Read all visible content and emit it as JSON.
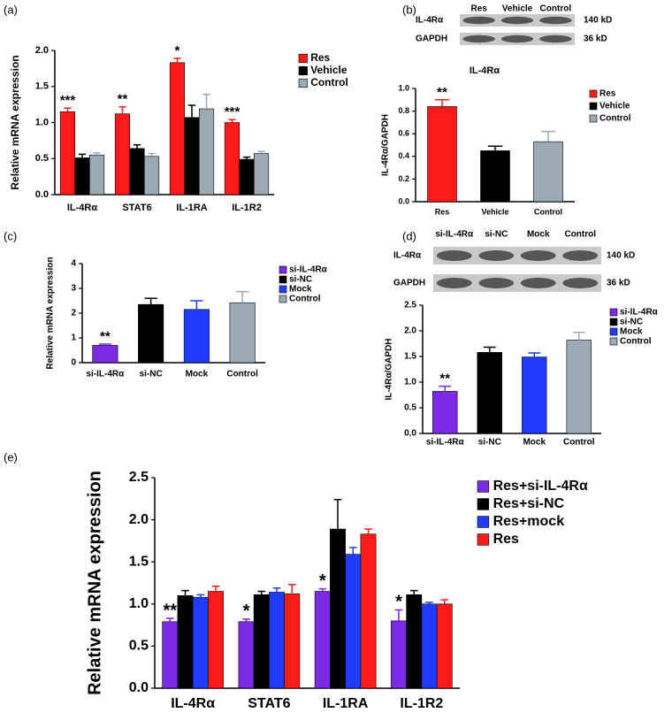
{
  "chart_data": [
    {
      "type": "bar",
      "panel": "(a)",
      "ylabel": "Relative mRNA expression",
      "categories": [
        "IL-4Rα",
        "STAT6",
        "IL-1RA",
        "IL-1R2"
      ],
      "series": [
        {
          "name": "Res",
          "color": "#ff1a1a",
          "values": [
            1.15,
            1.12,
            1.83,
            1.0
          ],
          "errors": [
            0.05,
            0.1,
            0.06,
            0.04
          ],
          "annotations": [
            "***",
            "**",
            "*",
            "***"
          ]
        },
        {
          "name": "Vehicle",
          "color": "#000000",
          "values": [
            0.51,
            0.64,
            1.07,
            0.49
          ],
          "errors": [
            0.05,
            0.05,
            0.17,
            0.03
          ]
        },
        {
          "name": "Control",
          "color": "#9aabb5",
          "values": [
            0.55,
            0.53,
            1.19,
            0.57
          ],
          "errors": [
            0.03,
            0.04,
            0.2,
            0.03
          ]
        }
      ],
      "ylim": [
        0,
        2
      ],
      "yticks": [
        {
          "value": 0,
          "label": "0.0"
        },
        0.5,
        {
          "value": 1,
          "label": "1.0"
        },
        1.5,
        {
          "value": 2,
          "label": "2.0"
        }
      ]
    },
    {
      "type": "bar",
      "panel": "(b)",
      "title": "IL-4Rα",
      "ylabel": "IL-4Rα/GAPDH",
      "blot": {
        "lanes": [
          "Res",
          "Vehicle",
          "Control"
        ],
        "rows": [
          {
            "name": "IL-4Rα",
            "size": "140 kD"
          },
          {
            "name": "GAPDH",
            "size": "36 kD"
          }
        ]
      },
      "categories": [
        "Res",
        "Vehicle",
        "Control"
      ],
      "values": [
        0.84,
        0.45,
        0.53
      ],
      "errors": [
        0.06,
        0.04,
        0.09
      ],
      "annotations": [
        "**",
        null,
        null
      ],
      "colors": [
        "#ff1a1a",
        "#000000",
        "#9aabb5"
      ],
      "ylim": [
        0,
        1
      ],
      "yticks": [
        {
          "value": 0,
          "label": "0.0"
        },
        0.2,
        0.4,
        0.6,
        0.8,
        {
          "value": 1,
          "label": "1.0"
        }
      ]
    },
    {
      "type": "bar",
      "panel": "(c)",
      "ylabel": "Relative mRNA expression",
      "categories": [
        "si-IL-4Rα",
        "si-NC",
        "Mock",
        "Control"
      ],
      "values": [
        0.7,
        2.35,
        2.15,
        2.42
      ],
      "errors": [
        0.05,
        0.25,
        0.35,
        0.45
      ],
      "annotations": [
        "**",
        null,
        null,
        null
      ],
      "colors": [
        "#7b2be2",
        "#000000",
        "#1f3cff",
        "#9aabb5"
      ],
      "ylim": [
        0,
        4
      ],
      "yticks": [
        0,
        1,
        2,
        3,
        4
      ]
    },
    {
      "type": "bar",
      "panel": "(d)",
      "ylabel": "IL-4Rα/GAPDH",
      "blot": {
        "lanes": [
          "si-IL-4Rα",
          "si-NC",
          "Mock",
          "Control"
        ],
        "rows": [
          {
            "name": "IL-4Rα",
            "size": "140 kD"
          },
          {
            "name": "GAPDH",
            "size": "36 kD"
          }
        ]
      },
      "categories": [
        "si-IL-4Rα",
        "si-NC",
        "Mock",
        "Control"
      ],
      "values": [
        0.82,
        1.58,
        1.49,
        1.82
      ],
      "errors": [
        0.1,
        0.1,
        0.08,
        0.15
      ],
      "annotations": [
        "**",
        null,
        null,
        null
      ],
      "colors": [
        "#7b2be2",
        "#000000",
        "#1f3cff",
        "#9aabb5"
      ],
      "ylim": [
        0,
        2.5
      ],
      "yticks": [
        {
          "value": 0,
          "label": "0.0"
        },
        0.5,
        {
          "value": 1,
          "label": "1.0"
        },
        1.5,
        {
          "value": 2,
          "label": "2.0"
        },
        2.5
      ]
    },
    {
      "type": "bar",
      "panel": "(e)",
      "ylabel": "Relative mRNA expression",
      "categories": [
        "IL-4Rα",
        "STAT6",
        "IL-1RA",
        "IL-1R2"
      ],
      "series": [
        {
          "name": "Res+si-IL-4Rα",
          "color": "#7b2be2",
          "values": [
            0.79,
            0.79,
            1.15,
            0.8
          ],
          "errors": [
            0.04,
            0.03,
            0.03,
            0.13
          ],
          "annotations": [
            "**",
            "*",
            "*",
            "*"
          ]
        },
        {
          "name": "Res+si-NC",
          "color": "#000000",
          "values": [
            1.1,
            1.11,
            1.89,
            1.11
          ],
          "errors": [
            0.06,
            0.04,
            0.35,
            0.05
          ]
        },
        {
          "name": "Res+mock",
          "color": "#1f3cff",
          "values": [
            1.08,
            1.14,
            1.59,
            1.0
          ],
          "errors": [
            0.03,
            0.05,
            0.08,
            0.02
          ]
        },
        {
          "name": "Res",
          "color": "#ff1a1a",
          "values": [
            1.15,
            1.12,
            1.83,
            1.0
          ],
          "errors": [
            0.06,
            0.11,
            0.06,
            0.05
          ]
        }
      ],
      "ylim": [
        0,
        2.5
      ],
      "yticks": [
        {
          "value": 0,
          "label": "0.0"
        },
        0.5,
        {
          "value": 1,
          "label": "1.0"
        },
        1.5,
        {
          "value": 2,
          "label": "2.0"
        },
        2.5
      ]
    }
  ]
}
